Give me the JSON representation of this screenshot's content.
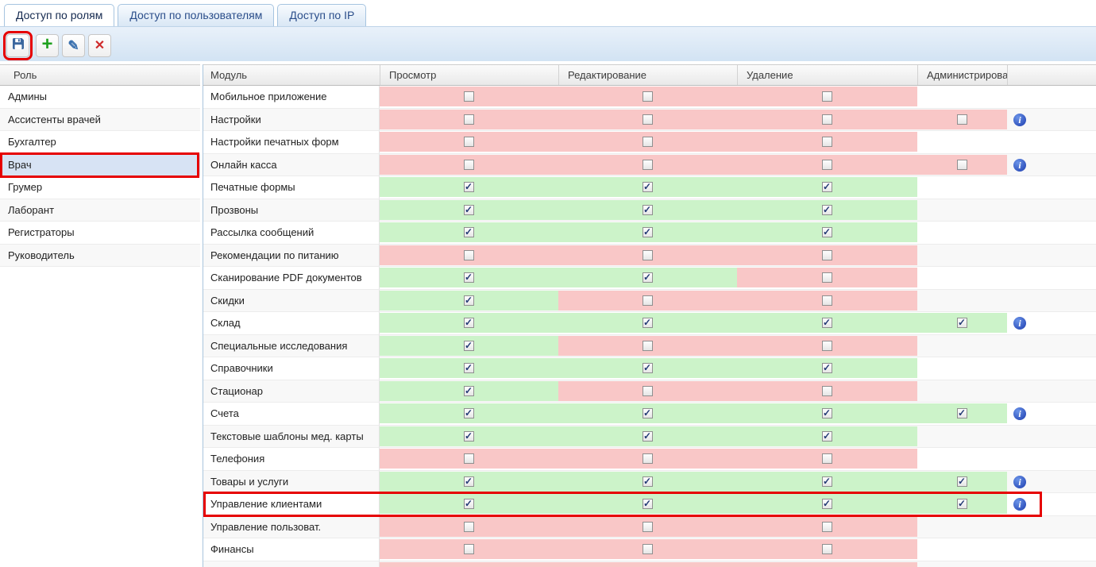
{
  "tabs": {
    "items": [
      {
        "key": "access-by-roles",
        "label": "Доступ по ролям",
        "active": true
      },
      {
        "key": "access-by-users",
        "label": "Доступ по пользователям",
        "active": false
      },
      {
        "key": "access-by-ip",
        "label": "Доступ по IP",
        "active": false
      }
    ]
  },
  "toolbar": {
    "buttons": [
      {
        "key": "save",
        "icon": "floppy-disk-icon",
        "highlighted": true
      },
      {
        "key": "add",
        "icon": "plus-icon",
        "highlighted": false
      },
      {
        "key": "edit",
        "icon": "pencil-icon",
        "highlighted": false
      },
      {
        "key": "delete",
        "icon": "x-icon",
        "highlighted": false
      }
    ]
  },
  "roles": {
    "header": "Роль",
    "items": [
      {
        "label": "Админы",
        "selected": false,
        "highlighted": false
      },
      {
        "label": "Ассистенты врачей",
        "selected": false,
        "highlighted": false
      },
      {
        "label": "Бухгалтер",
        "selected": false,
        "highlighted": false
      },
      {
        "label": "Врач",
        "selected": true,
        "highlighted": true
      },
      {
        "label": "Грумер",
        "selected": false,
        "highlighted": false
      },
      {
        "label": "Лаборант",
        "selected": false,
        "highlighted": false
      },
      {
        "label": "Регистраторы",
        "selected": false,
        "highlighted": false
      },
      {
        "label": "Руководитель",
        "selected": false,
        "highlighted": false
      }
    ]
  },
  "permissions": {
    "columns": [
      "Модуль",
      "Просмотр",
      "Редактирование",
      "Удаление",
      "Администрирование"
    ],
    "rows": [
      {
        "module": "Мобильное приложение",
        "view": "off",
        "edit": "off",
        "delete": "off",
        "admin": null,
        "info": false,
        "highlighted": false
      },
      {
        "module": "Настройки",
        "view": "off",
        "edit": "off",
        "delete": "off",
        "admin": "off",
        "info": true,
        "highlighted": false
      },
      {
        "module": "Настройки печатных форм",
        "view": "off",
        "edit": "off",
        "delete": "off",
        "admin": null,
        "info": false,
        "highlighted": false
      },
      {
        "module": "Онлайн касса",
        "view": "off",
        "edit": "off",
        "delete": "off",
        "admin": "off",
        "info": true,
        "highlighted": false
      },
      {
        "module": "Печатные формы",
        "view": "on",
        "edit": "on",
        "delete": "on",
        "admin": null,
        "info": false,
        "highlighted": false
      },
      {
        "module": "Прозвоны",
        "view": "on",
        "edit": "on",
        "delete": "on",
        "admin": null,
        "info": false,
        "highlighted": false
      },
      {
        "module": "Рассылка сообщений",
        "view": "on",
        "edit": "on",
        "delete": "on",
        "admin": null,
        "info": false,
        "highlighted": false
      },
      {
        "module": "Рекомендации по питанию",
        "view": "off",
        "edit": "off",
        "delete": "off",
        "admin": null,
        "info": false,
        "highlighted": false
      },
      {
        "module": "Сканирование PDF документов",
        "view": "on",
        "edit": "on",
        "delete": "off",
        "admin": null,
        "info": false,
        "highlighted": false
      },
      {
        "module": "Скидки",
        "view": "on",
        "edit": "off",
        "delete": "off",
        "admin": null,
        "info": false,
        "highlighted": false
      },
      {
        "module": "Склад",
        "view": "on",
        "edit": "on",
        "delete": "on",
        "admin": "on",
        "info": true,
        "highlighted": false
      },
      {
        "module": "Специальные исследования",
        "view": "on",
        "edit": "off",
        "delete": "off",
        "admin": null,
        "info": false,
        "highlighted": false
      },
      {
        "module": "Справочники",
        "view": "on",
        "edit": "on",
        "delete": "on",
        "admin": null,
        "info": false,
        "highlighted": false
      },
      {
        "module": "Стационар",
        "view": "on",
        "edit": "off",
        "delete": "off",
        "admin": null,
        "info": false,
        "highlighted": false
      },
      {
        "module": "Счета",
        "view": "on",
        "edit": "on",
        "delete": "on",
        "admin": "on",
        "info": true,
        "highlighted": false
      },
      {
        "module": "Текстовые шаблоны мед. карты",
        "view": "on",
        "edit": "on",
        "delete": "on",
        "admin": null,
        "info": false,
        "highlighted": false
      },
      {
        "module": "Телефония",
        "view": "off",
        "edit": "off",
        "delete": "off",
        "admin": null,
        "info": false,
        "highlighted": false
      },
      {
        "module": "Товары и услуги",
        "view": "on",
        "edit": "on",
        "delete": "on",
        "admin": "on",
        "info": true,
        "highlighted": false
      },
      {
        "module": "Управление клиентами",
        "view": "on",
        "edit": "on",
        "delete": "on",
        "admin": "on",
        "info": true,
        "highlighted": true
      },
      {
        "module": "Управление пользоват.",
        "view": "off",
        "edit": "off",
        "delete": "off",
        "admin": null,
        "info": false,
        "highlighted": false
      },
      {
        "module": "Финансы",
        "view": "off",
        "edit": "off",
        "delete": "off",
        "admin": null,
        "info": false,
        "highlighted": false
      },
      {
        "module": "",
        "view": "off",
        "edit": "off",
        "delete": "off",
        "admin": null,
        "info": false,
        "highlighted": false
      }
    ]
  },
  "colors": {
    "granted_bg": "#ccf3c9",
    "denied_bg": "#f9c7c7",
    "highlight_border": "#e60000",
    "selected_role_bg": "#d7e3f4",
    "info_icon_blue": "#1c3cae"
  }
}
